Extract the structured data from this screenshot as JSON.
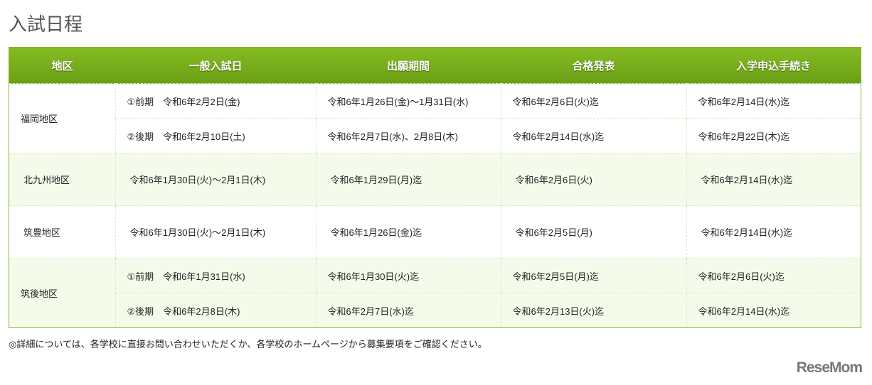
{
  "title": "入試日程",
  "headers": [
    "地区",
    "一般入試日",
    "出願期間",
    "合格発表",
    "入学申込手続き"
  ],
  "rows": {
    "fukuoka": {
      "region": "福岡地区",
      "a": [
        "①前期　令和6年2月2日(金)",
        "令和6年1月26日(金)〜1月31日(水)",
        "令和6年2月6日(火)迄",
        "令和6年2月14日(水)迄"
      ],
      "b": [
        "②後期　令和6年2月10日(土)",
        "令和6年2月7日(水)、2月8日(木)",
        "令和6年2月14日(水)迄",
        "令和6年2月22日(木)迄"
      ]
    },
    "kitakyushu": {
      "region": "北九州地区",
      "a": [
        "令和6年1月30日(火)〜2月1日(木)",
        "令和6年1月29日(月)迄",
        "令和6年2月6日(火)",
        "令和6年2月14日(水)迄"
      ]
    },
    "chikuho": {
      "region": "筑豊地区",
      "a": [
        "令和6年1月30日(火)〜2月1日(木)",
        "令和6年1月26日(金)迄",
        "令和6年2月5日(月)",
        "令和6年2月14日(水)迄"
      ]
    },
    "chikugo": {
      "region": "筑後地区",
      "a": [
        "①前期　令和6年1月31日(水)",
        "令和6年1月30日(火)迄",
        "令和6年2月5日(月)迄",
        "令和6年2月6日(火)迄"
      ],
      "b": [
        "②後期　令和6年2月8日(木)",
        "令和6年2月7日(水)迄",
        "令和6年2月13日(火)迄",
        "令和6年2月14日(水)迄"
      ]
    }
  },
  "note": "◎詳細については、各学校に直接お問い合わせいただくか、各学校のホームページから募集要項をご確認ください。",
  "logo": "ReseMom"
}
